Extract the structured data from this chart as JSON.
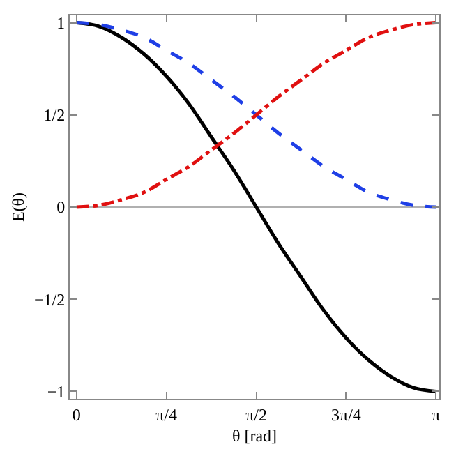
{
  "chart_data": {
    "type": "line",
    "xlabel": "θ [rad]",
    "ylabel": "E(θ)",
    "x": [
      0,
      0.196,
      0.393,
      0.589,
      0.785,
      0.982,
      1.178,
      1.374,
      1.571,
      1.767,
      1.963,
      2.16,
      2.356,
      2.553,
      2.749,
      2.945,
      3.142
    ],
    "series": [
      {
        "color": "#000000",
        "line_style": "solid",
        "values": [
          1,
          0.98,
          0.92,
          0.83,
          0.71,
          0.56,
          0.38,
          0.2,
          0,
          -0.2,
          -0.38,
          -0.56,
          -0.71,
          -0.83,
          -0.92,
          -0.98,
          -1
        ]
      },
      {
        "color": "#1f3fe6",
        "line_style": "dashed",
        "values": [
          1,
          0.99,
          0.96,
          0.92,
          0.85,
          0.78,
          0.69,
          0.6,
          0.5,
          0.4,
          0.31,
          0.22,
          0.15,
          0.08,
          0.04,
          0.01,
          0
        ]
      },
      {
        "color": "#e01010",
        "line_style": "dashdot",
        "values": [
          0,
          0.01,
          0.04,
          0.08,
          0.15,
          0.22,
          0.31,
          0.4,
          0.5,
          0.6,
          0.69,
          0.78,
          0.85,
          0.92,
          0.96,
          0.99,
          1
        ]
      }
    ],
    "xlim": [
      -0.06,
      3.17
    ],
    "ylim": [
      -1.04,
      1.04
    ],
    "xticks": [
      0,
      {
        "value": 0.785,
        "label": "π/4"
      },
      {
        "value": 1.571,
        "label": "π/2"
      },
      {
        "value": 2.356,
        "label": "3π/4"
      },
      {
        "value": 3.142,
        "label": "π"
      }
    ],
    "yticks": [
      {
        "value": -1,
        "label": "−1"
      },
      {
        "value": -0.5,
        "label": "−1/2"
      },
      0,
      {
        "value": 0.5,
        "label": "1/2"
      },
      1
    ],
    "ref_lines": [
      {
        "axis": "y",
        "value": 0,
        "color": "#b0b0b0"
      }
    ],
    "grid": false,
    "legend": false
  }
}
